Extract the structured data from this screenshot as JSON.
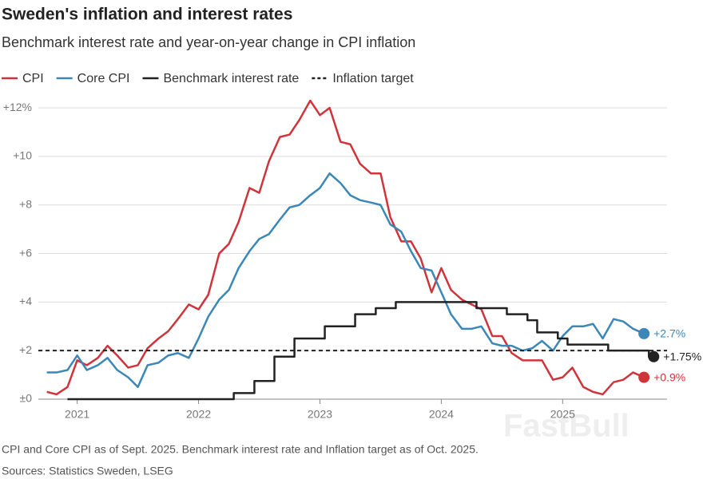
{
  "chart_data": {
    "type": "line",
    "title": "Sweden's inflation and interest rates",
    "subtitle": "Benchmark interest rate and year-on-year change in CPI inflation",
    "footnote": "CPI and Core CPI as of Sept. 2025. Benchmark interest rate and Inflation target as of Oct. 2025.",
    "source": "Sources: Statistics Sweden, LSEG",
    "watermark": "FastBull",
    "grid": true,
    "xlim": [
      2020.68,
      2025.86
    ],
    "xticks": [
      2021,
      2022,
      2023,
      2024,
      2025
    ],
    "ylim": [
      0,
      12.3
    ],
    "yticks": [
      {
        "value": 0,
        "label": "±0"
      },
      {
        "value": 2,
        "label": "+2"
      },
      {
        "value": 4,
        "label": "+4"
      },
      {
        "value": 6,
        "label": "+6"
      },
      {
        "value": 8,
        "label": "+8"
      },
      {
        "value": 10,
        "label": "+10"
      },
      {
        "value": 12,
        "label": "+12%"
      }
    ],
    "x": [
      2020.75,
      2020.83,
      2020.92,
      2021,
      2021.08,
      2021.17,
      2021.25,
      2021.33,
      2021.42,
      2021.5,
      2021.58,
      2021.67,
      2021.75,
      2021.83,
      2021.92,
      2022,
      2022.08,
      2022.17,
      2022.25,
      2022.33,
      2022.42,
      2022.5,
      2022.58,
      2022.67,
      2022.75,
      2022.83,
      2022.92,
      2023,
      2023.08,
      2023.17,
      2023.25,
      2023.33,
      2023.42,
      2023.5,
      2023.58,
      2023.67,
      2023.75,
      2023.83,
      2023.92,
      2024,
      2024.08,
      2024.17,
      2024.25,
      2024.33,
      2024.42,
      2024.5,
      2024.58,
      2024.67,
      2024.75,
      2024.83,
      2024.92,
      2025,
      2025.08,
      2025.17,
      2025.25,
      2025.33,
      2025.42,
      2025.5,
      2025.58,
      2025.67,
      2025.75
    ],
    "series": [
      {
        "name": "CPI",
        "color": "#d0343a",
        "style": "line",
        "end_label": "+0.9%",
        "values": [
          0.3,
          0.2,
          0.5,
          1.6,
          1.4,
          1.7,
          2.2,
          1.8,
          1.3,
          1.4,
          2.1,
          2.5,
          2.8,
          3.3,
          3.9,
          3.7,
          4.3,
          6.0,
          6.4,
          7.3,
          8.7,
          8.5,
          9.8,
          10.8,
          10.9,
          11.5,
          12.3,
          11.7,
          12.0,
          10.6,
          10.5,
          9.7,
          9.3,
          9.3,
          7.5,
          6.5,
          6.5,
          5.8,
          4.4,
          5.4,
          4.5,
          4.1,
          3.9,
          3.7,
          2.6,
          2.6,
          1.9,
          1.6,
          1.6,
          1.6,
          0.8,
          0.9,
          1.3,
          0.5,
          0.3,
          0.2,
          0.7,
          0.8,
          1.1,
          0.9,
          null
        ]
      },
      {
        "name": "Core CPI",
        "color": "#3a87b8",
        "style": "line",
        "end_label": "+2.7%",
        "values": [
          1.1,
          1.1,
          1.2,
          1.8,
          1.2,
          1.4,
          1.7,
          1.2,
          0.9,
          0.5,
          1.4,
          1.5,
          1.8,
          1.9,
          1.7,
          2.5,
          3.4,
          4.1,
          4.5,
          5.4,
          6.1,
          6.6,
          6.8,
          7.4,
          7.9,
          8.0,
          8.4,
          8.7,
          9.3,
          8.9,
          8.4,
          8.2,
          8.1,
          8.0,
          7.2,
          6.9,
          6.1,
          5.4,
          5.3,
          4.4,
          3.5,
          2.9,
          2.9,
          3.0,
          2.3,
          2.2,
          2.2,
          2.0,
          2.1,
          2.4,
          2.0,
          2.6,
          3.0,
          3.0,
          3.1,
          2.5,
          3.3,
          3.2,
          2.9,
          2.7,
          null
        ]
      },
      {
        "name": "Benchmark interest rate",
        "color": "#222222",
        "style": "step",
        "end_label": "+1.75%",
        "values": [
          null,
          null,
          0,
          0,
          0,
          0,
          0,
          0,
          0,
          0,
          0,
          0,
          0,
          0,
          0,
          0,
          0,
          0,
          0,
          0.25,
          0.25,
          0.75,
          0.75,
          1.75,
          1.75,
          2.5,
          2.5,
          2.5,
          3,
          3,
          3,
          3.5,
          3.5,
          3.75,
          3.75,
          4,
          4,
          4,
          4,
          4,
          4,
          4,
          4,
          3.75,
          3.75,
          3.75,
          3.5,
          3.5,
          3.25,
          2.75,
          2.75,
          2.5,
          2.25,
          2.25,
          2.25,
          2.25,
          2,
          2,
          2,
          2,
          1.75
        ]
      },
      {
        "name": "Inflation target",
        "color": "#222222",
        "style": "dashed",
        "x": [
          2020.68,
          2025.86
        ],
        "values": [
          2,
          2
        ]
      }
    ]
  }
}
